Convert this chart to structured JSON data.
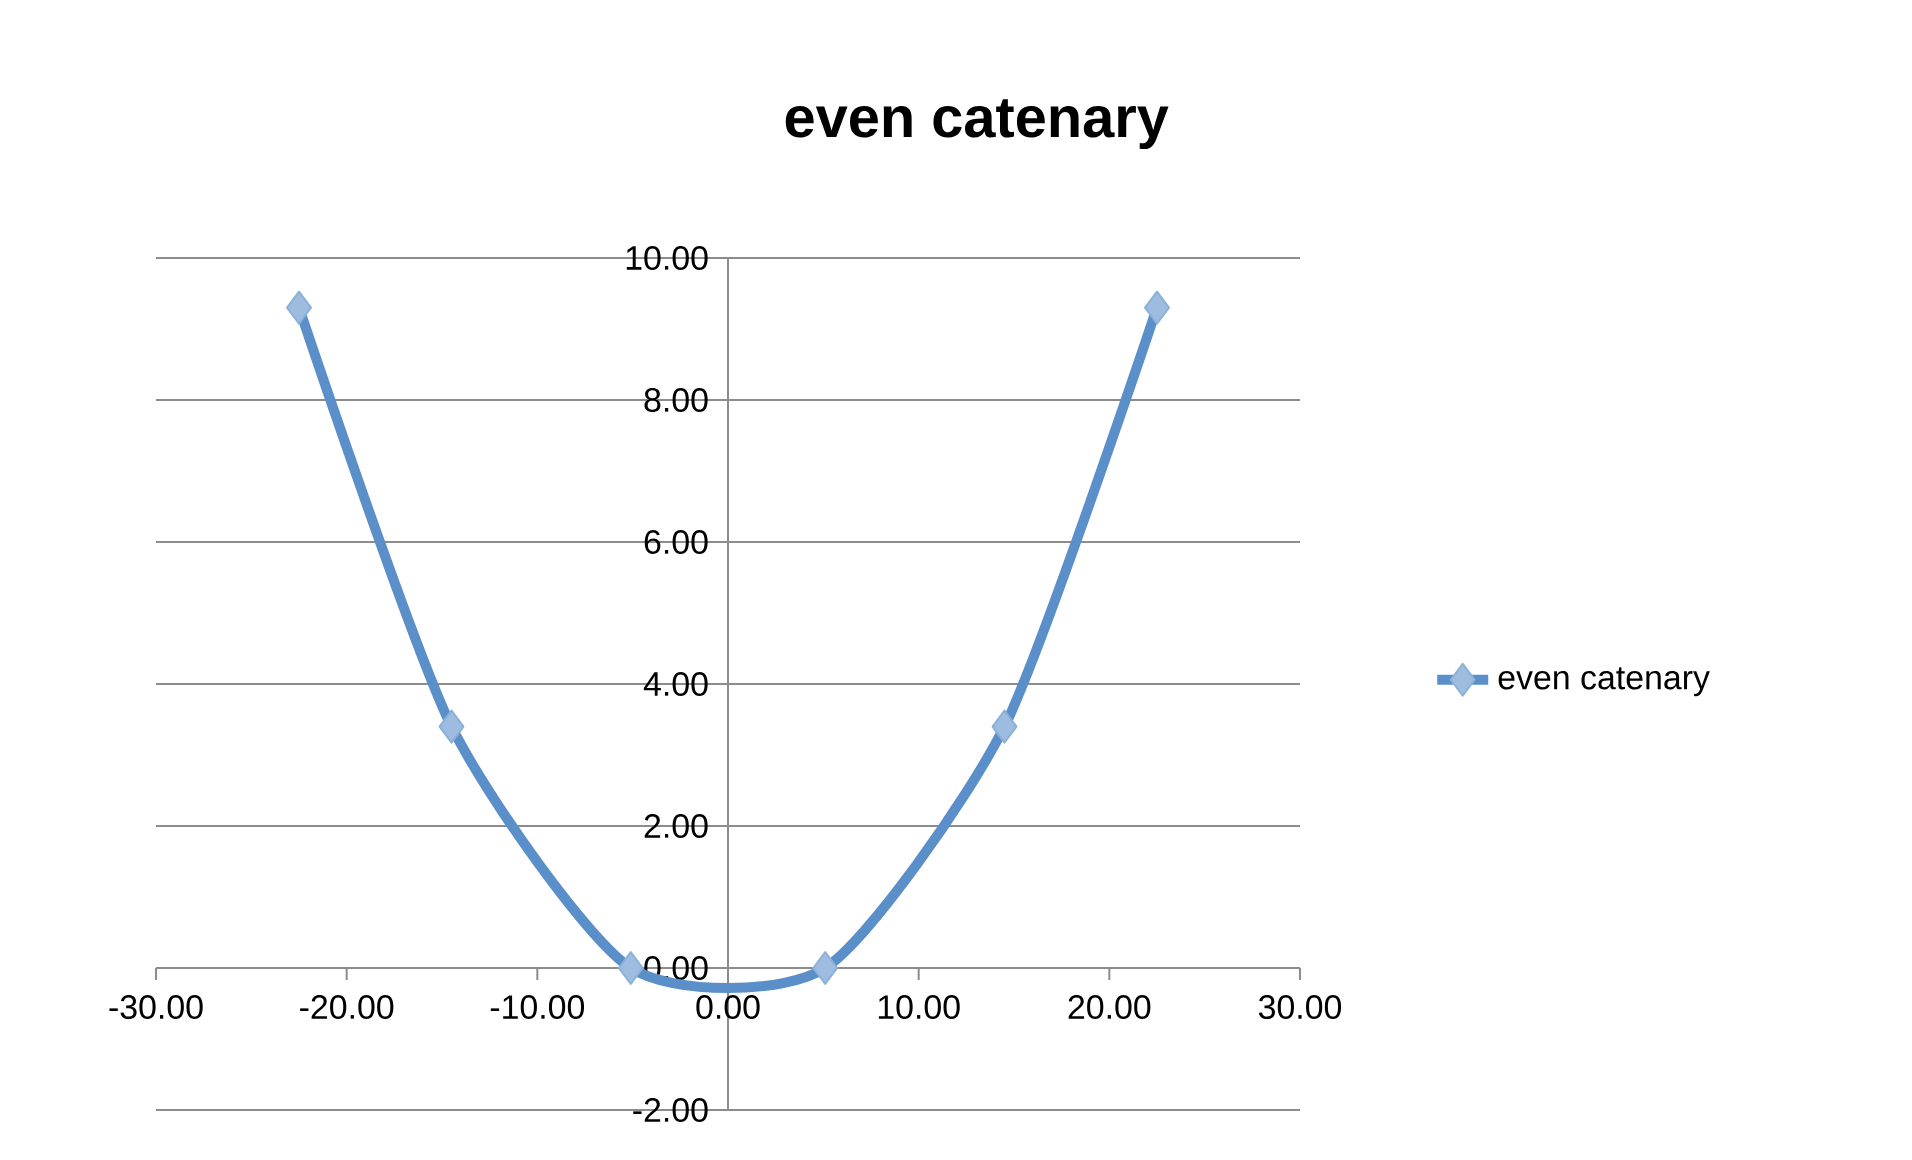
{
  "chart_data": {
    "type": "line",
    "title": "even catenary",
    "x": [
      -22.5,
      -14.5,
      -5.1,
      5.1,
      14.5,
      22.5
    ],
    "series": [
      {
        "name": "even catenary",
        "color": "#5b8fc9",
        "values": [
          9.3,
          3.4,
          0,
          0,
          3.4,
          9.3
        ]
      }
    ],
    "xlim": [
      -30,
      30
    ],
    "xticks": [
      {
        "value": -30,
        "label": "-30.00"
      },
      {
        "value": -20,
        "label": "-20.00"
      },
      {
        "value": -10,
        "label": "-10.00"
      },
      {
        "value": 0,
        "label": "0.00"
      },
      {
        "value": 10,
        "label": "10.00"
      },
      {
        "value": 20,
        "label": "20.00"
      },
      {
        "value": 30,
        "label": "30.00"
      }
    ],
    "ylim": [
      -2,
      10
    ],
    "yticks": [
      {
        "value": -2,
        "label": "-2.00"
      },
      {
        "value": 0,
        "label": "0.00"
      },
      {
        "value": 2,
        "label": "2.00"
      },
      {
        "value": 4,
        "label": "4.00"
      },
      {
        "value": 6,
        "label": "6.00"
      },
      {
        "value": 8,
        "label": "8.00"
      },
      {
        "value": 10,
        "label": "10.00"
      }
    ],
    "grid": "y",
    "legend": "right",
    "marker": "diamond",
    "line_style": "solid"
  }
}
